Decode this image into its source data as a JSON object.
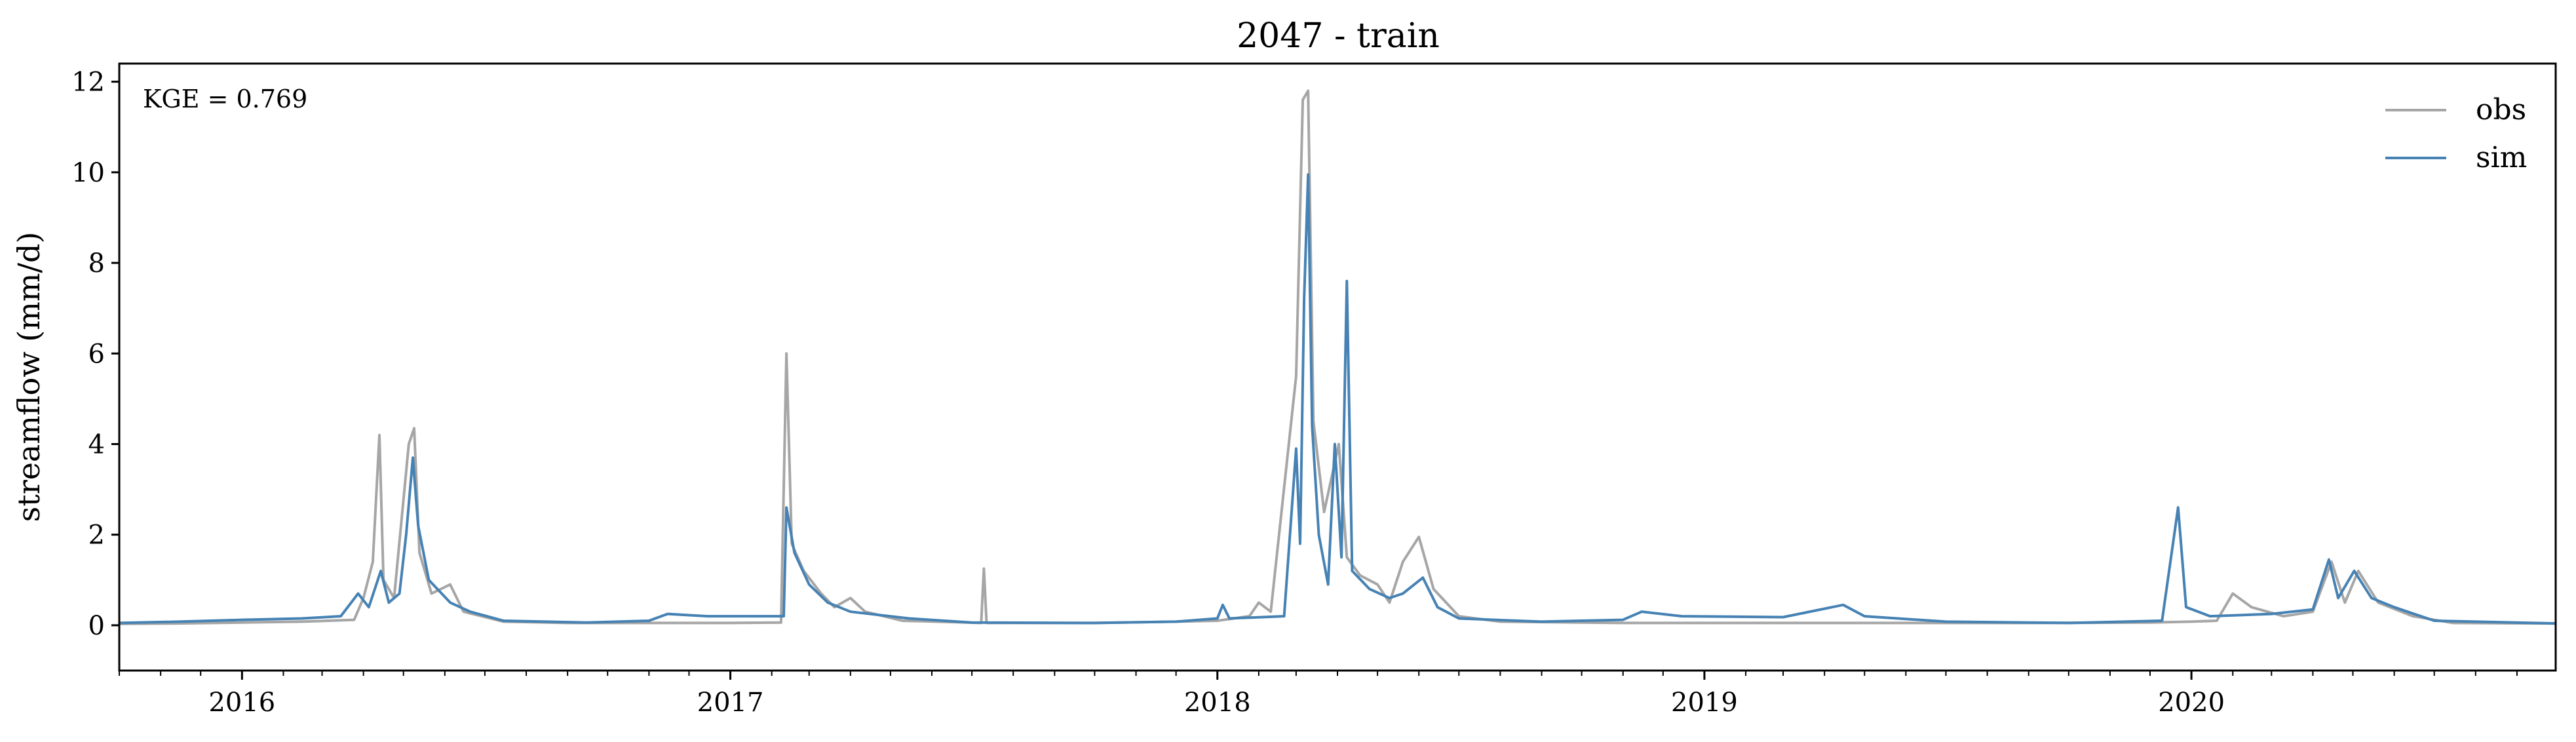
{
  "chart_data": {
    "type": "line",
    "title": "2047 - train",
    "xlabel": "",
    "ylabel": "streamflow (mm/d)",
    "annotation": "KGE = 0.769",
    "legend_position": "top-right",
    "grid": false,
    "xlim": [
      "2015-10-01",
      "2020-09-30"
    ],
    "ylim": [
      -1,
      12.4
    ],
    "x_ticks": [
      "2016",
      "2017",
      "2018",
      "2019",
      "2020"
    ],
    "y_ticks": [
      0,
      2,
      4,
      6,
      8,
      10,
      12
    ],
    "series": [
      {
        "name": "obs",
        "color": "#a6a6a6",
        "points": [
          [
            "2015-10-01",
            0.03
          ],
          [
            "2015-11-15",
            0.04
          ],
          [
            "2016-01-01",
            0.06
          ],
          [
            "2016-02-15",
            0.08
          ],
          [
            "2016-03-25",
            0.12
          ],
          [
            "2016-04-01",
            0.6
          ],
          [
            "2016-04-08",
            1.4
          ],
          [
            "2016-04-13",
            4.2
          ],
          [
            "2016-04-16",
            1.0
          ],
          [
            "2016-04-24",
            0.6
          ],
          [
            "2016-05-05",
            4.0
          ],
          [
            "2016-05-09",
            4.35
          ],
          [
            "2016-05-13",
            1.6
          ],
          [
            "2016-05-22",
            0.7
          ],
          [
            "2016-06-05",
            0.9
          ],
          [
            "2016-06-15",
            0.3
          ],
          [
            "2016-07-15",
            0.08
          ],
          [
            "2016-09-01",
            0.05
          ],
          [
            "2016-11-15",
            0.05
          ],
          [
            "2017-01-01",
            0.05
          ],
          [
            "2017-02-08",
            0.06
          ],
          [
            "2017-02-12",
            6.0
          ],
          [
            "2017-02-16",
            1.8
          ],
          [
            "2017-02-25",
            1.2
          ],
          [
            "2017-03-10",
            0.7
          ],
          [
            "2017-03-20",
            0.4
          ],
          [
            "2017-04-01",
            0.6
          ],
          [
            "2017-04-12",
            0.3
          ],
          [
            "2017-05-10",
            0.1
          ],
          [
            "2017-07-08",
            0.05
          ],
          [
            "2017-07-10",
            1.25
          ],
          [
            "2017-07-12",
            0.05
          ],
          [
            "2017-10-01",
            0.05
          ],
          [
            "2017-12-01",
            0.08
          ],
          [
            "2018-01-01",
            0.1
          ],
          [
            "2018-01-25",
            0.2
          ],
          [
            "2018-02-01",
            0.5
          ],
          [
            "2018-02-10",
            0.3
          ],
          [
            "2018-03-01",
            5.5
          ],
          [
            "2018-03-06",
            11.6
          ],
          [
            "2018-03-10",
            11.8
          ],
          [
            "2018-03-14",
            4.5
          ],
          [
            "2018-03-22",
            2.5
          ],
          [
            "2018-04-02",
            4.0
          ],
          [
            "2018-04-08",
            1.5
          ],
          [
            "2018-04-18",
            1.1
          ],
          [
            "2018-05-01",
            0.9
          ],
          [
            "2018-05-10",
            0.5
          ],
          [
            "2018-05-20",
            1.4
          ],
          [
            "2018-06-01",
            1.95
          ],
          [
            "2018-06-12",
            0.8
          ],
          [
            "2018-07-01",
            0.2
          ],
          [
            "2018-08-01",
            0.08
          ],
          [
            "2018-11-01",
            0.05
          ],
          [
            "2019-01-01",
            0.05
          ],
          [
            "2019-05-01",
            0.05
          ],
          [
            "2019-09-01",
            0.05
          ],
          [
            "2019-12-01",
            0.06
          ],
          [
            "2020-01-01",
            0.08
          ],
          [
            "2020-01-20",
            0.1
          ],
          [
            "2020-02-01",
            0.7
          ],
          [
            "2020-02-15",
            0.4
          ],
          [
            "2020-03-10",
            0.2
          ],
          [
            "2020-04-01",
            0.3
          ],
          [
            "2020-04-15",
            1.4
          ],
          [
            "2020-04-25",
            0.5
          ],
          [
            "2020-05-05",
            1.2
          ],
          [
            "2020-05-20",
            0.5
          ],
          [
            "2020-06-15",
            0.2
          ],
          [
            "2020-07-15",
            0.05
          ],
          [
            "2020-09-30",
            0.04
          ]
        ]
      },
      {
        "name": "sim",
        "color": "#4682b4",
        "points": [
          [
            "2015-10-01",
            0.05
          ],
          [
            "2015-11-15",
            0.08
          ],
          [
            "2016-01-01",
            0.12
          ],
          [
            "2016-02-15",
            0.15
          ],
          [
            "2016-03-15",
            0.2
          ],
          [
            "2016-03-28",
            0.7
          ],
          [
            "2016-04-05",
            0.4
          ],
          [
            "2016-04-14",
            1.2
          ],
          [
            "2016-04-20",
            0.5
          ],
          [
            "2016-04-28",
            0.7
          ],
          [
            "2016-05-03",
            2.0
          ],
          [
            "2016-05-08",
            3.7
          ],
          [
            "2016-05-12",
            2.2
          ],
          [
            "2016-05-20",
            1.0
          ],
          [
            "2016-06-05",
            0.5
          ],
          [
            "2016-06-20",
            0.3
          ],
          [
            "2016-07-15",
            0.1
          ],
          [
            "2016-09-15",
            0.06
          ],
          [
            "2016-11-01",
            0.1
          ],
          [
            "2016-11-15",
            0.25
          ],
          [
            "2016-12-15",
            0.2
          ],
          [
            "2017-02-10",
            0.2
          ],
          [
            "2017-02-12",
            2.6
          ],
          [
            "2017-02-18",
            1.6
          ],
          [
            "2017-03-01",
            0.9
          ],
          [
            "2017-03-15",
            0.5
          ],
          [
            "2017-04-01",
            0.3
          ],
          [
            "2017-05-15",
            0.15
          ],
          [
            "2017-07-01",
            0.06
          ],
          [
            "2017-10-01",
            0.05
          ],
          [
            "2017-12-01",
            0.08
          ],
          [
            "2018-01-01",
            0.15
          ],
          [
            "2018-01-05",
            0.45
          ],
          [
            "2018-01-10",
            0.15
          ],
          [
            "2018-02-20",
            0.2
          ],
          [
            "2018-03-01",
            3.9
          ],
          [
            "2018-03-04",
            1.8
          ],
          [
            "2018-03-07",
            7.2
          ],
          [
            "2018-03-10",
            9.95
          ],
          [
            "2018-03-13",
            4.4
          ],
          [
            "2018-03-18",
            2.0
          ],
          [
            "2018-03-25",
            0.9
          ],
          [
            "2018-03-30",
            4.0
          ],
          [
            "2018-04-04",
            1.5
          ],
          [
            "2018-04-08",
            7.6
          ],
          [
            "2018-04-12",
            1.2
          ],
          [
            "2018-04-25",
            0.8
          ],
          [
            "2018-05-10",
            0.6
          ],
          [
            "2018-05-20",
            0.7
          ],
          [
            "2018-06-04",
            1.05
          ],
          [
            "2018-06-15",
            0.4
          ],
          [
            "2018-07-01",
            0.15
          ],
          [
            "2018-09-01",
            0.08
          ],
          [
            "2018-11-01",
            0.12
          ],
          [
            "2018-11-15",
            0.3
          ],
          [
            "2018-12-15",
            0.2
          ],
          [
            "2019-03-01",
            0.18
          ],
          [
            "2019-04-15",
            0.45
          ],
          [
            "2019-05-01",
            0.2
          ],
          [
            "2019-07-01",
            0.08
          ],
          [
            "2019-10-01",
            0.05
          ],
          [
            "2019-12-10",
            0.1
          ],
          [
            "2019-12-22",
            2.6
          ],
          [
            "2019-12-28",
            0.4
          ],
          [
            "2020-01-15",
            0.2
          ],
          [
            "2020-03-01",
            0.25
          ],
          [
            "2020-04-01",
            0.35
          ],
          [
            "2020-04-13",
            1.45
          ],
          [
            "2020-04-20",
            0.6
          ],
          [
            "2020-05-02",
            1.2
          ],
          [
            "2020-05-15",
            0.6
          ],
          [
            "2020-06-01",
            0.4
          ],
          [
            "2020-07-01",
            0.1
          ],
          [
            "2020-09-30",
            0.04
          ]
        ]
      }
    ]
  }
}
